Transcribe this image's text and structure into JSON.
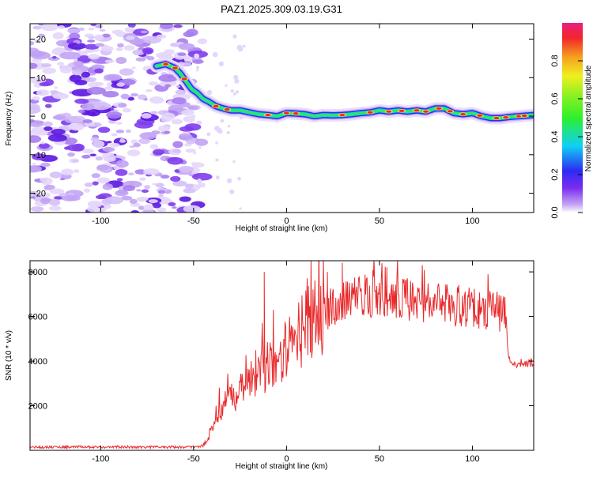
{
  "title": "PAZ1.2025.309.03.19.G31",
  "chart_data": [
    {
      "type": "heatmap",
      "name": "spectrogram",
      "xlabel": "Height of straight line (km)",
      "ylabel": "Frequency (Hz)",
      "xlim": [
        -138,
        133
      ],
      "ylim": [
        -25,
        24
      ],
      "xticks": [
        -100,
        -50,
        0,
        50,
        100
      ],
      "yticks": [
        -20,
        -10,
        0,
        10,
        20
      ],
      "xtick_labels": [
        "-100",
        "-50",
        "0",
        "50",
        "100"
      ],
      "ytick_labels": [
        "-20",
        "-10",
        "0",
        "10",
        "20"
      ],
      "noise_region_x": [
        -138,
        -50
      ],
      "ridge": {
        "x": [
          -70,
          -65,
          -60,
          -57,
          -54,
          -51,
          -48,
          -45,
          -42,
          -38,
          -34,
          -30,
          -25,
          -20,
          -15,
          -10,
          -5,
          0,
          5,
          10,
          15,
          20,
          25,
          30,
          35,
          40,
          45,
          50,
          55,
          60,
          65,
          70,
          75,
          80,
          85,
          90,
          95,
          100,
          105,
          110,
          115,
          120,
          125,
          133
        ],
        "y": [
          13,
          13.5,
          12.5,
          11,
          9,
          7,
          6,
          4.5,
          3.8,
          2.6,
          2,
          1.5,
          1.5,
          1,
          0.5,
          0.3,
          0,
          0.8,
          0.7,
          0.5,
          0,
          0.3,
          0.2,
          0.3,
          0.5,
          0.8,
          1,
          1.5,
          1.2,
          1.5,
          1.2,
          1.5,
          1.2,
          2,
          2,
          0.8,
          0.5,
          0.8,
          0,
          -0.5,
          -0.5,
          -0.2,
          0,
          0.3
        ],
        "peak_x": [
          -65,
          -60,
          -55,
          -38,
          -32,
          -10,
          0,
          5,
          30,
          45,
          55,
          62,
          70,
          75,
          82,
          88,
          95,
          104,
          113,
          118,
          125,
          128
        ]
      },
      "colorbar": {
        "label": "Normalized spectral amplitude",
        "range": [
          0,
          1
        ],
        "ticks": [
          0,
          0.2,
          0.4,
          0.6,
          0.8
        ],
        "tick_labels": [
          "0.0",
          "0.2",
          "0.4",
          "0.6",
          "0.8"
        ]
      }
    },
    {
      "type": "line",
      "name": "snr",
      "xlabel": "Height of straight line (km)",
      "ylabel": "SNR (10 * v/v)",
      "xlim": [
        -138,
        133
      ],
      "ylim": [
        0,
        8500
      ],
      "xticks": [
        -100,
        -50,
        0,
        50,
        100
      ],
      "yticks": [
        2000,
        4000,
        6000,
        8000
      ],
      "xtick_labels": [
        "-100",
        "-50",
        "0",
        "50",
        "100"
      ],
      "ytick_labels": [
        "2000",
        "4000",
        "6000",
        "8000"
      ],
      "color": "#e8292b",
      "envelope": {
        "x": [
          -138,
          -50,
          -45,
          -42,
          -40,
          -38,
          -35,
          -30,
          -25,
          -20,
          -15,
          -10,
          -5,
          0,
          5,
          10,
          15,
          20,
          25,
          30,
          40,
          50,
          60,
          70,
          80,
          90,
          100,
          110,
          118,
          119,
          120,
          125,
          133
        ],
        "y": [
          150,
          150,
          200,
          600,
          1100,
          1600,
          2000,
          2300,
          2600,
          3000,
          3400,
          3800,
          4200,
          4600,
          5000,
          5400,
          5800,
          6200,
          6500,
          6700,
          6900,
          6900,
          6800,
          6700,
          6600,
          6500,
          6400,
          6300,
          6200,
          4500,
          4000,
          3900,
          3900
        ]
      },
      "spikes": {
        "x": [
          -12,
          22,
          30,
          47,
          54
        ],
        "y": [
          8000,
          8000,
          8400,
          8500,
          8200
        ]
      }
    }
  ]
}
